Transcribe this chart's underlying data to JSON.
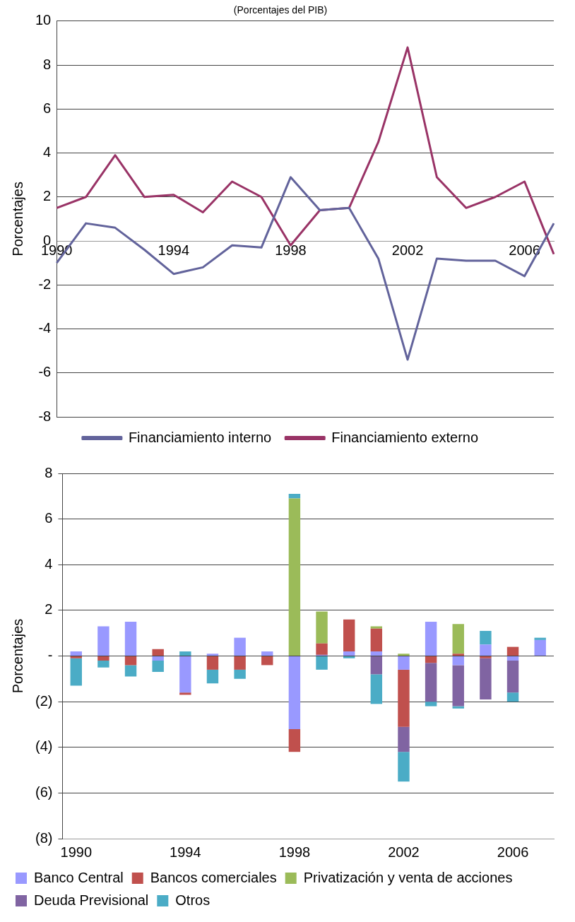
{
  "chart_data": [
    {
      "type": "line",
      "title": "(Porcentajes del PIB)",
      "ylabel": "Porcentajes",
      "categories": [
        "1990",
        null,
        null,
        null,
        "1994",
        null,
        null,
        null,
        "1998",
        null,
        null,
        null,
        "2002",
        null,
        null,
        null,
        "2006",
        null
      ],
      "series": [
        {
          "name": "Financiamiento interno",
          "color": "#62639b",
          "values": [
            -1.0,
            0.8,
            0.6,
            -0.4,
            -1.5,
            -1.2,
            -0.2,
            -0.3,
            2.9,
            1.4,
            1.5,
            -0.8,
            -5.4,
            -0.8,
            -0.9,
            -0.9,
            -1.6,
            0.8
          ]
        },
        {
          "name": "Financiamiento externo",
          "color": "#993366",
          "values": [
            1.5,
            2.0,
            3.9,
            2.0,
            2.1,
            1.3,
            2.7,
            2.0,
            -0.2,
            1.4,
            1.5,
            4.5,
            8.8,
            2.9,
            1.5,
            2.0,
            2.7,
            -0.6
          ]
        }
      ],
      "ylim": [
        -8,
        10
      ],
      "yticks": [
        -8,
        -6,
        -4,
        -2,
        0,
        2,
        4,
        6,
        8,
        10
      ],
      "grid": "y",
      "legend": "bottom",
      "marker": "none",
      "line_style": "solid"
    },
    {
      "type": "bar",
      "stacked": true,
      "ylabel": "Porcentajes",
      "categories": [
        "1990",
        null,
        null,
        null,
        "1994",
        null,
        null,
        null,
        "1998",
        null,
        null,
        null,
        "2002",
        null,
        null,
        null,
        "2006",
        null
      ],
      "series": [
        {
          "name": "Banco Central",
          "color": "#9999ff",
          "values": [
            0.2,
            1.3,
            1.5,
            -0.2,
            -1.6,
            0.1,
            0.8,
            0.2,
            -3.2,
            0.05,
            0.2,
            0.2,
            -0.6,
            1.5,
            -0.4,
            0.5,
            -0.2,
            0.7
          ]
        },
        {
          "name": "Bancos comerciales",
          "color": "#c0504d",
          "values": [
            -0.1,
            -0.2,
            -0.4,
            0.3,
            -0.1,
            -0.6,
            -0.6,
            -0.4,
            -1.0,
            0.5,
            1.4,
            1.0,
            -2.5,
            -0.3,
            0.1,
            -0.1,
            0.4,
            null
          ]
        },
        {
          "name": "Privatización y venta de acciones",
          "color": "#9bbb59",
          "values": [
            null,
            null,
            null,
            null,
            null,
            null,
            null,
            null,
            6.9,
            1.4,
            null,
            0.1,
            0.1,
            null,
            1.3,
            null,
            null,
            null
          ]
        },
        {
          "name": "Deuda Previsional",
          "color": "#8064a2",
          "values": [
            null,
            null,
            null,
            null,
            null,
            null,
            null,
            null,
            null,
            null,
            null,
            -0.8,
            -1.1,
            -1.7,
            -1.8,
            -1.8,
            -1.4,
            null
          ]
        },
        {
          "name": "Otros",
          "color": "#4bacc6",
          "values": [
            -1.2,
            -0.3,
            -0.5,
            -0.5,
            0.2,
            -0.6,
            -0.4,
            null,
            0.2,
            -0.6,
            -0.1,
            -1.3,
            -1.3,
            -0.2,
            -0.1,
            0.6,
            -0.4,
            0.1
          ]
        }
      ],
      "ylim": [
        -8,
        8
      ],
      "yticks": [
        {
          "value": -8,
          "label": "(8)"
        },
        {
          "value": -6,
          "label": "(6)"
        },
        {
          "value": -4,
          "label": "(4)"
        },
        {
          "value": -2,
          "label": "(2)"
        },
        {
          "value": 0,
          "label": "-"
        },
        2,
        4,
        6,
        8
      ],
      "grid": "y",
      "legend": "bottom"
    }
  ]
}
